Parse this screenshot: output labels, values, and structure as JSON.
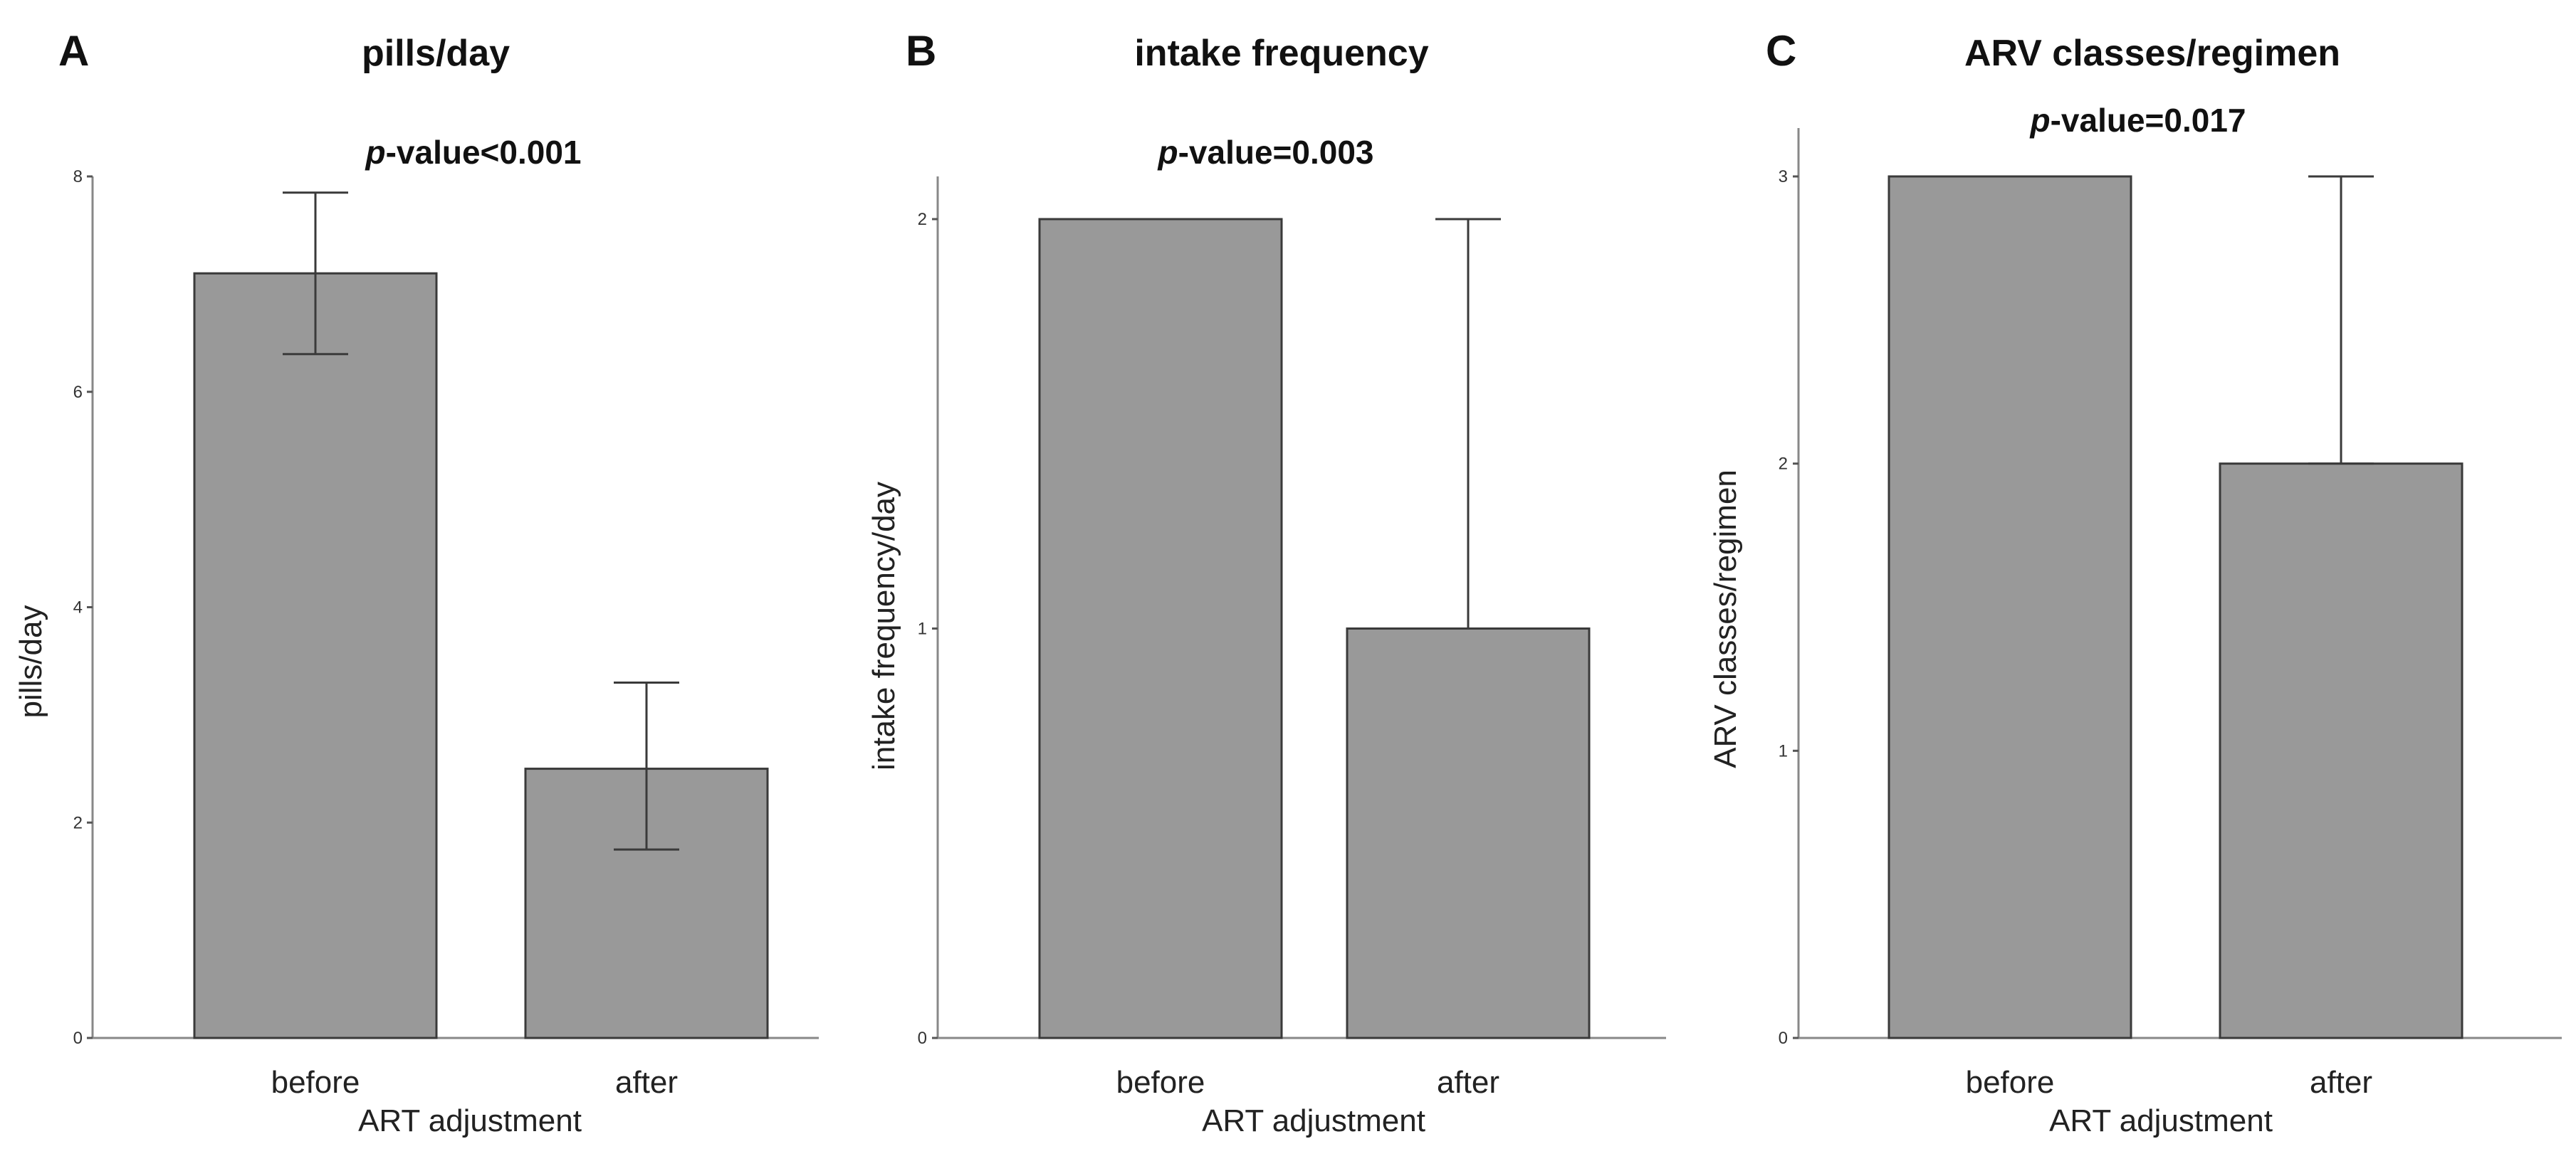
{
  "colors": {
    "bar_fill": "#999999",
    "bar_stroke": "#3a3a3a",
    "axis": "#888888"
  },
  "chart_data": [
    {
      "panel_letter": "A",
      "type": "bar",
      "title": "pills/day",
      "pvalue": {
        "prefix": "p",
        "text": "-value<0.001"
      },
      "categories": [
        "before",
        "after"
      ],
      "values": [
        7.1,
        2.5
      ],
      "errors": [
        [
          6.35,
          7.85
        ],
        [
          1.75,
          3.3
        ]
      ],
      "xlabel": "ART adjustment",
      "ylabel": "pills/day",
      "ylim": [
        0,
        8
      ],
      "yticks": [
        "0",
        "2",
        "4",
        "6",
        "8"
      ]
    },
    {
      "panel_letter": "B",
      "type": "bar",
      "title": "intake frequency",
      "pvalue": {
        "prefix": "p",
        "text": "-value=0.003"
      },
      "categories": [
        "before",
        "after"
      ],
      "values": [
        2,
        1
      ],
      "errors": [
        [
          2,
          2
        ],
        [
          1,
          2
        ]
      ],
      "xlabel": "ART adjustment",
      "ylabel": "intake frequency/day",
      "ylim": [
        0,
        2
      ],
      "yticks": [
        "0",
        "1",
        "2"
      ]
    },
    {
      "panel_letter": "C",
      "type": "bar",
      "title": "ARV classes/regimen",
      "pvalue": {
        "prefix": "p",
        "text": "-value=0.017"
      },
      "categories": [
        "before",
        "after"
      ],
      "values": [
        3,
        2
      ],
      "errors": [
        [
          3,
          3
        ],
        [
          2,
          3
        ]
      ],
      "xlabel": "ART adjustment",
      "ylabel": "ARV classes/regimen",
      "ylim": [
        0,
        3
      ],
      "yticks": [
        "0",
        "1",
        "2",
        "3"
      ]
    }
  ]
}
